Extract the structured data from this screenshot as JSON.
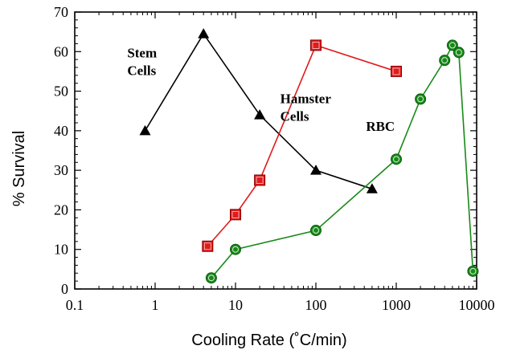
{
  "chart_data": {
    "type": "line",
    "xlabel": "Cooling Rate (˚C/min)",
    "ylabel": "% Survival",
    "xscale": "log",
    "xlim": [
      0.1,
      10000
    ],
    "ylim": [
      0,
      70
    ],
    "x_ticks": [
      0.1,
      1,
      10,
      100,
      1000,
      10000
    ],
    "x_tick_labels": [
      "0.1",
      "1",
      "10",
      "100",
      "1000",
      "10000"
    ],
    "y_ticks": [
      0,
      10,
      20,
      30,
      40,
      50,
      60,
      70
    ],
    "y_tick_labels": [
      "0",
      "10",
      "20",
      "30",
      "40",
      "50",
      "60",
      "70"
    ],
    "grid": false,
    "legend": "none",
    "series": [
      {
        "marker": "triangle",
        "color": "#000000",
        "x": [
          0.75,
          4,
          20,
          100,
          500
        ],
        "y": [
          40,
          64.5,
          44,
          30,
          25.3
        ]
      },
      {
        "marker": "square",
        "color": "#e01b1b",
        "x": [
          4.5,
          10,
          20,
          100,
          1000
        ],
        "y": [
          10.8,
          18.8,
          27.5,
          61.6,
          55
        ]
      },
      {
        "marker": "circle",
        "color": "#188a18",
        "x": [
          5,
          10,
          100,
          1000,
          2000,
          4000,
          5000,
          6000,
          9000
        ],
        "y": [
          2.8,
          10,
          14.8,
          32.8,
          48,
          57.8,
          61.6,
          59.8,
          4.5
        ]
      }
    ],
    "annotations": [
      {
        "lines": [
          "Stem",
          "Cells"
        ],
        "x": 0.45,
        "y": 58.5
      },
      {
        "lines": [
          "Hamster",
          "Cells"
        ],
        "x": 36,
        "y": 47
      },
      {
        "lines": [
          "RBC"
        ],
        "x": 420,
        "y": 40
      }
    ]
  }
}
